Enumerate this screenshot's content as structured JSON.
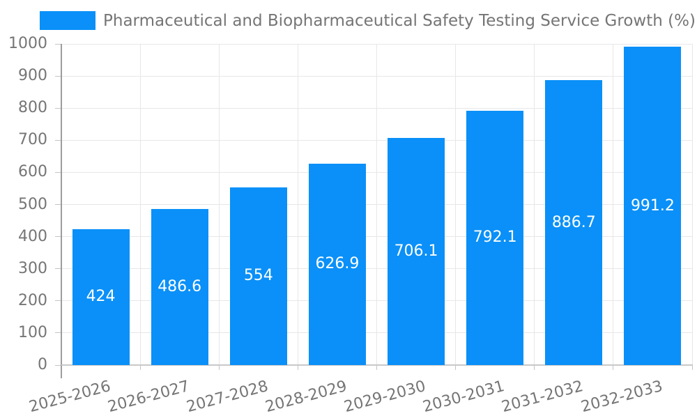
{
  "chart_data": {
    "type": "bar",
    "title": "Pharmaceutical and Biopharmaceutical Safety Testing Service Growth (%)",
    "categories": [
      "2025-2026",
      "2026-2027",
      "2027-2028",
      "2028-2029",
      "2029-2030",
      "2030-2031",
      "2031-2032",
      "2032-2033"
    ],
    "values": [
      424,
      486.6,
      554,
      626.9,
      706.1,
      792.1,
      886.7,
      991.2
    ],
    "value_labels": [
      "424",
      "486.6",
      "554",
      "626.9",
      "706.1",
      "792.1",
      "886.7",
      "991.2"
    ],
    "xlabel": "",
    "ylabel": "",
    "ylim": [
      0,
      1000
    ],
    "ytick_step": 100,
    "ytick_labels": [
      "0",
      "100",
      "200",
      "300",
      "400",
      "500",
      "600",
      "700",
      "800",
      "900",
      "1000"
    ],
    "grid": true,
    "legend_position": "top-left",
    "legend_entries": [
      "Pharmaceutical and Biopharmaceutical Safety Testing Service Growth (%)"
    ],
    "colors": {
      "bar": "#0a90f8",
      "grid": "#e7e7e7",
      "axis_line": "#9c9c9c",
      "baseline": "#c8c8c8",
      "tick": "#c4c4c4",
      "text": "#757575",
      "value_label": "#ffffff",
      "background": "#ffffff"
    }
  }
}
